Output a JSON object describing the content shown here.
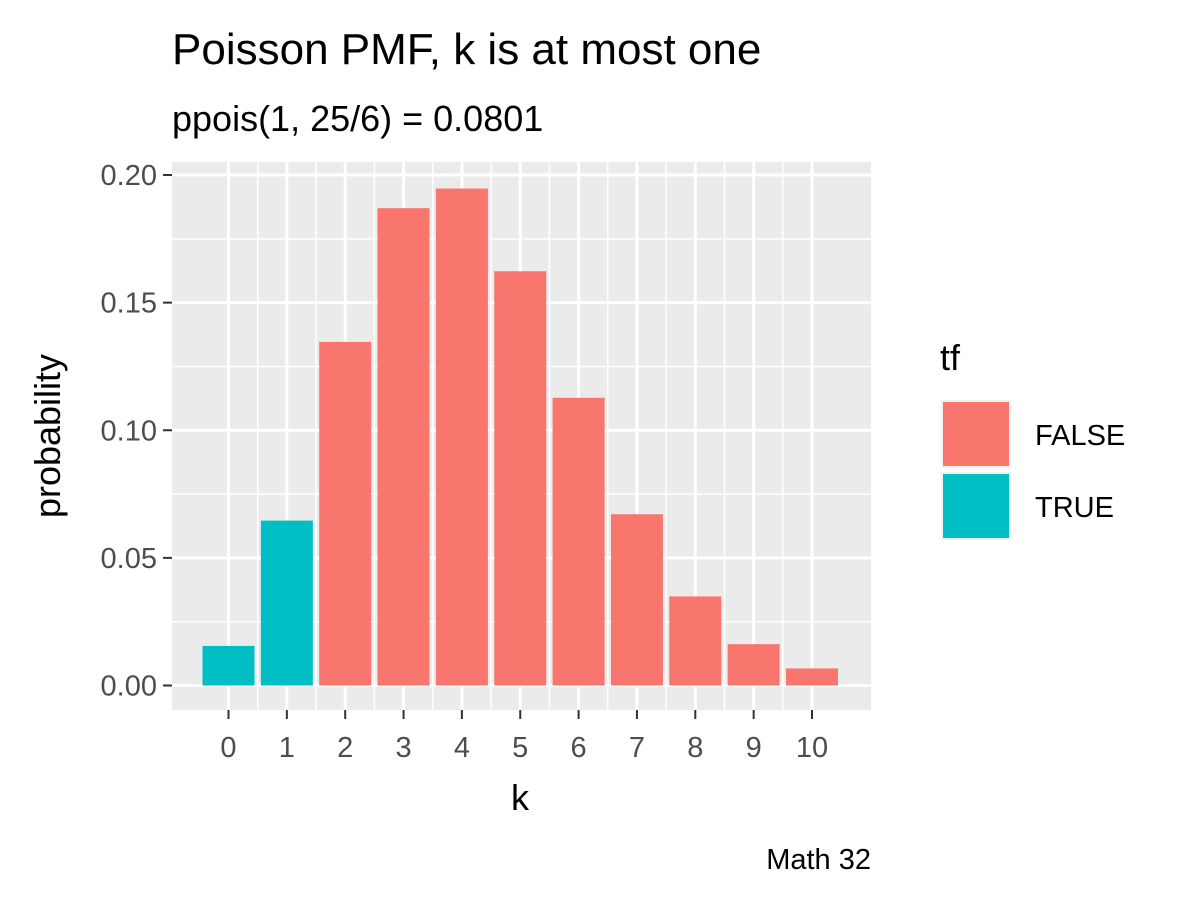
{
  "chart_data": {
    "type": "bar",
    "title": "Poisson PMF, k is at most one",
    "subtitle": "ppois(1, 25/6) = 0.0801",
    "xlabel": "k",
    "ylabel": "probability",
    "caption": "Math 32",
    "categories": [
      "0",
      "1",
      "2",
      "3",
      "4",
      "5",
      "6",
      "7",
      "8",
      "9",
      "10"
    ],
    "values": [
      0.0155,
      0.0646,
      0.1346,
      0.187,
      0.1947,
      0.1623,
      0.1127,
      0.0671,
      0.0349,
      0.0162,
      0.0067
    ],
    "fill_group": [
      "TRUE",
      "TRUE",
      "FALSE",
      "FALSE",
      "FALSE",
      "FALSE",
      "FALSE",
      "FALSE",
      "FALSE",
      "FALSE",
      "FALSE"
    ],
    "ylim": [
      0,
      0.2
    ],
    "yticks": [
      "0.00",
      "0.05",
      "0.10",
      "0.15",
      "0.20"
    ],
    "grid": true,
    "legend": {
      "title": "tf",
      "position": "right",
      "entries": [
        {
          "label": "FALSE",
          "color": "#f8766d"
        },
        {
          "label": "TRUE",
          "color": "#00bfc4"
        }
      ]
    },
    "colors": {
      "FALSE": "#f8766d",
      "TRUE": "#00bfc4",
      "panel": "#ebebeb",
      "grid": "#ffffff"
    }
  }
}
